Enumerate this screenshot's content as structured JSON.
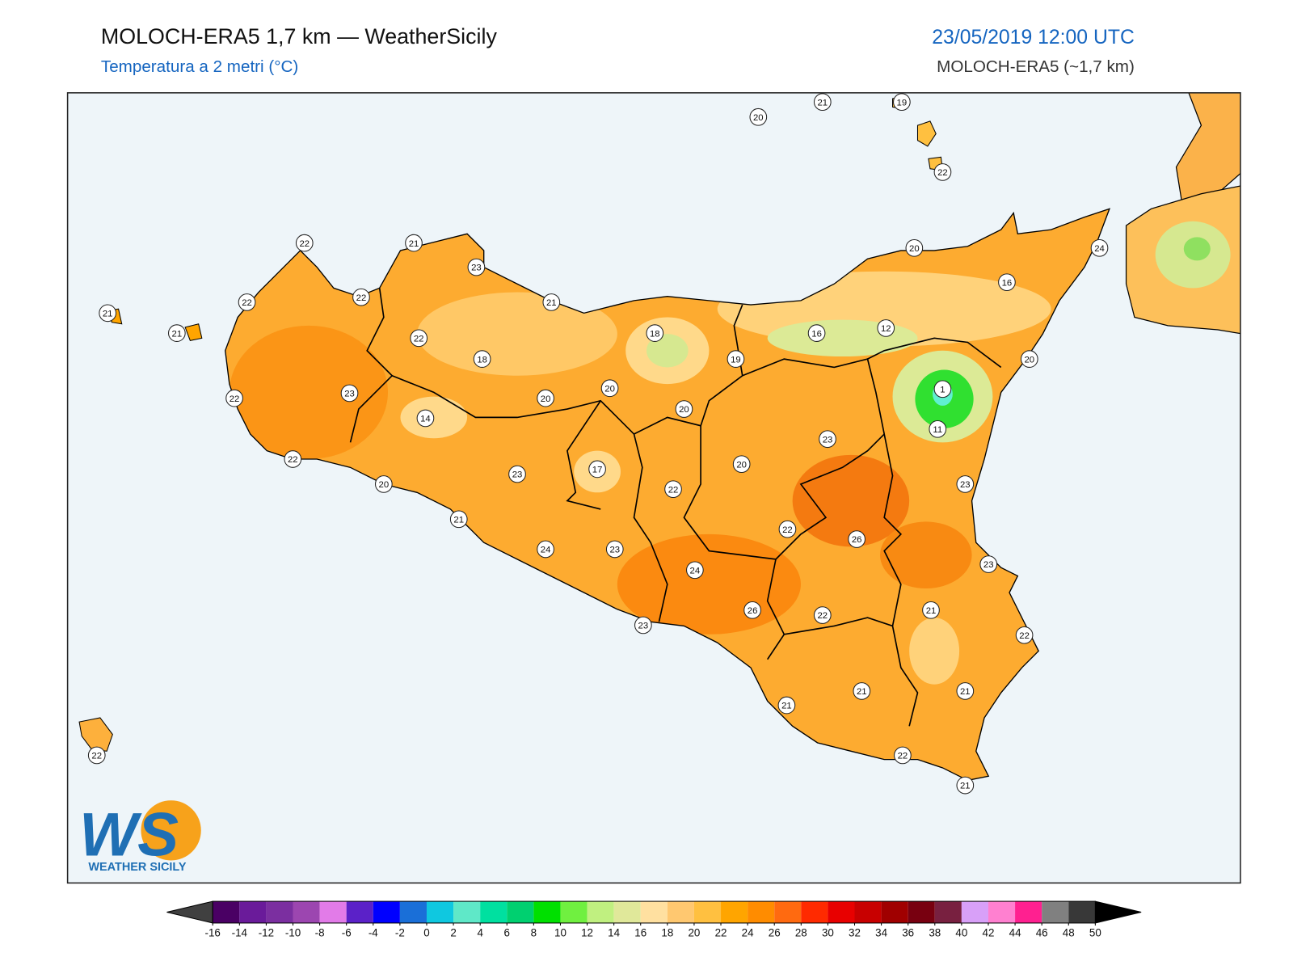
{
  "header": {
    "title": "MOLOCH-ERA5 1,7 km — WeatherSicily",
    "subtitle": "Temperatura a 2 metri (°C)",
    "datetime": "23/05/2019 12:00 UTC",
    "model": "MOLOCH-ERA5 (~1,7 km)"
  },
  "stations": [
    20,
    21,
    19,
    22,
    22,
    21,
    23,
    20,
    24,
    21,
    22,
    22,
    21,
    16,
    21,
    22,
    18,
    18,
    19,
    16,
    12,
    20,
    1,
    22,
    23,
    20,
    20,
    20,
    14,
    11,
    23,
    22,
    17,
    20,
    23,
    20,
    22,
    23,
    21,
    22,
    26,
    24,
    23,
    24,
    23,
    26,
    21,
    22,
    22,
    23,
    21,
    21,
    21,
    22,
    22,
    21
  ],
  "colorbar": {
    "ticks": [
      -16,
      -14,
      -12,
      -10,
      -8,
      -6,
      -4,
      -2,
      0,
      2,
      4,
      6,
      8,
      10,
      12,
      14,
      16,
      18,
      20,
      22,
      24,
      26,
      28,
      30,
      32,
      34,
      36,
      38,
      40,
      42,
      44,
      46,
      48,
      50
    ],
    "colors": [
      "#4a0064",
      "#6a1b9a",
      "#7b2fa0",
      "#9c46b0",
      "#e27be8",
      "#5b21c8",
      "#0000ff",
      "#1a6fd8",
      "#0fc8e0",
      "#5fe8c8",
      "#00e0a0",
      "#00d070",
      "#00e000",
      "#70f040",
      "#c0f080",
      "#e0e89a",
      "#ffe0a0",
      "#ffc870",
      "#ffc040",
      "#ffa500",
      "#ff8c00",
      "#ff6a10",
      "#ff2a00",
      "#e80000",
      "#c80000",
      "#a00000",
      "#780010",
      "#782040",
      "#d8a0f8",
      "#ff80d0",
      "#ff2090",
      "#808080",
      "#383838"
    ],
    "extend_colors": [
      "#404040",
      "#000000"
    ]
  },
  "logo": {
    "mark": "WS",
    "name": "WEATHER SICILY"
  }
}
